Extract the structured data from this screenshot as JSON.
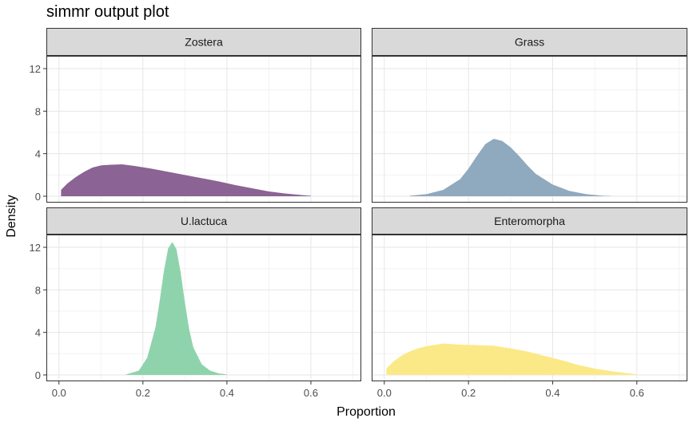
{
  "chart_data": {
    "type": "area",
    "title": "simmr output plot",
    "xlabel": "Proportion",
    "ylabel": "Density",
    "xlim": [
      -0.03,
      0.72
    ],
    "ylim": [
      -0.6,
      13.2
    ],
    "xticks": [
      0.0,
      0.2,
      0.4,
      0.6
    ],
    "xtick_labels": [
      "0.0",
      "0.2",
      "0.4",
      "0.6"
    ],
    "yticks": [
      0,
      4,
      8,
      12
    ],
    "ytick_labels": [
      "0",
      "4",
      "8",
      "12"
    ],
    "grid": true,
    "legend": "none",
    "facets": [
      {
        "name": "Zostera",
        "color": "#8b6394",
        "x": [
          0.005,
          0.02,
          0.04,
          0.06,
          0.08,
          0.1,
          0.12,
          0.15,
          0.18,
          0.22,
          0.26,
          0.3,
          0.34,
          0.38,
          0.42,
          0.46,
          0.5,
          0.54,
          0.58,
          0.6
        ],
        "y": [
          0.6,
          1.2,
          1.8,
          2.3,
          2.7,
          2.9,
          2.95,
          3.0,
          2.85,
          2.6,
          2.3,
          2.0,
          1.7,
          1.4,
          1.05,
          0.75,
          0.45,
          0.25,
          0.1,
          0.05
        ]
      },
      {
        "name": "Grass",
        "color": "#8fa9bf",
        "x": [
          0.06,
          0.1,
          0.14,
          0.18,
          0.2,
          0.22,
          0.24,
          0.26,
          0.28,
          0.3,
          0.32,
          0.34,
          0.36,
          0.4,
          0.44,
          0.48,
          0.52,
          0.54
        ],
        "y": [
          0.05,
          0.2,
          0.6,
          1.6,
          2.6,
          3.8,
          4.9,
          5.4,
          5.2,
          4.6,
          3.8,
          2.9,
          2.1,
          1.1,
          0.5,
          0.2,
          0.05,
          0.02
        ]
      },
      {
        "name": "U.lactuca",
        "color": "#8fd3ad",
        "x": [
          0.16,
          0.19,
          0.21,
          0.23,
          0.24,
          0.25,
          0.26,
          0.27,
          0.28,
          0.29,
          0.3,
          0.31,
          0.32,
          0.34,
          0.36,
          0.38,
          0.4
        ],
        "y": [
          0.05,
          0.4,
          1.6,
          4.5,
          7.0,
          9.8,
          11.9,
          12.5,
          11.8,
          9.6,
          6.8,
          4.3,
          2.6,
          1.0,
          0.4,
          0.15,
          0.05
        ]
      },
      {
        "name": "Enteromorpha",
        "color": "#fbe988",
        "x": [
          0.005,
          0.02,
          0.04,
          0.06,
          0.08,
          0.1,
          0.14,
          0.18,
          0.22,
          0.26,
          0.3,
          0.34,
          0.38,
          0.42,
          0.46,
          0.5,
          0.54,
          0.58,
          0.6
        ],
        "y": [
          0.6,
          1.2,
          1.8,
          2.2,
          2.5,
          2.7,
          2.95,
          2.85,
          2.8,
          2.75,
          2.5,
          2.2,
          1.8,
          1.4,
          0.95,
          0.6,
          0.35,
          0.15,
          0.05
        ]
      }
    ]
  }
}
